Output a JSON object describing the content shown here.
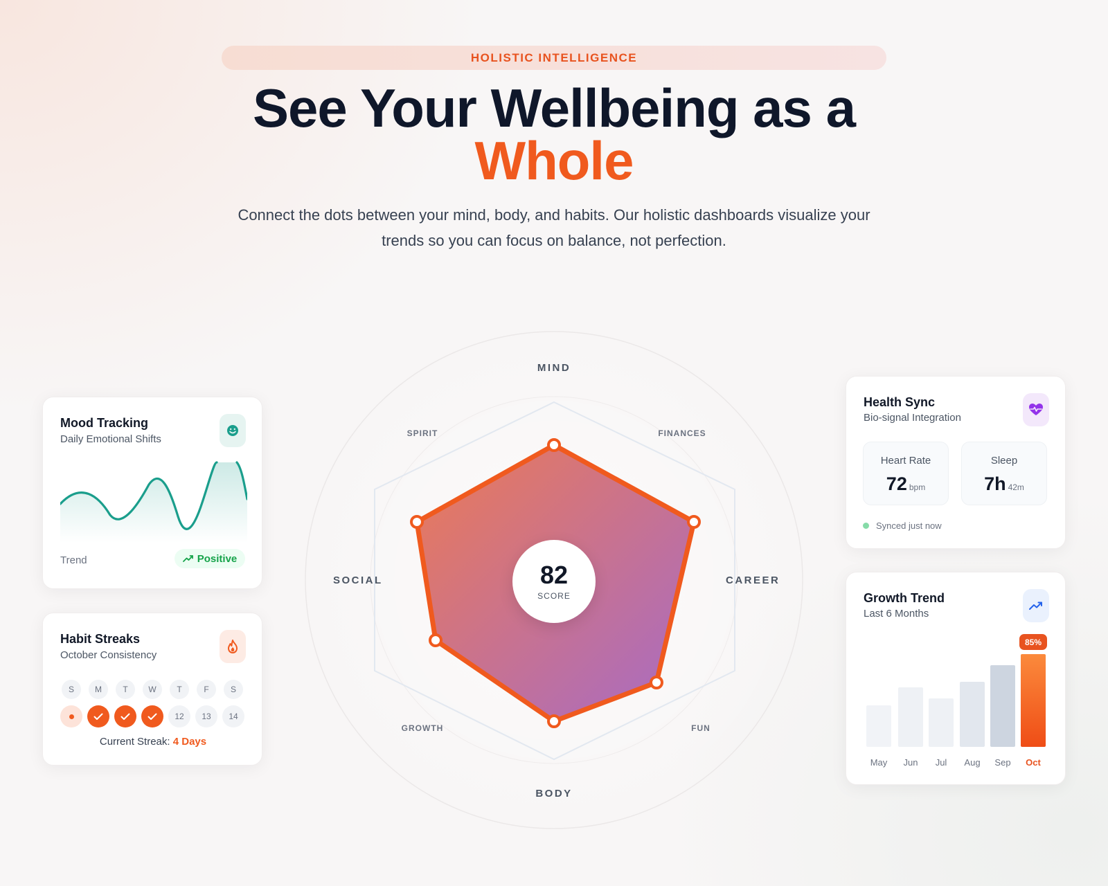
{
  "header": {
    "eyebrow": "HOLISTIC INTELLIGENCE",
    "title_line1": "See Your Wellbeing as a",
    "title_line2": "Whole",
    "description": "Connect the dots between your mind, body, and habits. Our holistic dashboards visualize your trends so you can focus on balance, not perfection."
  },
  "mood": {
    "title": "Mood Tracking",
    "subtitle": "Daily Emotional Shifts",
    "icon": "smile-icon",
    "trend_label": "Trend",
    "trend_value": "Positive",
    "accent": "#1a9e8c"
  },
  "habit": {
    "title": "Habit Streaks",
    "subtitle": "October Consistency",
    "icon": "flame-icon",
    "weekdays": [
      "S",
      "M",
      "T",
      "W",
      "T",
      "F",
      "S"
    ],
    "days": [
      {
        "label": "",
        "state": "today"
      },
      {
        "label": "",
        "state": "done"
      },
      {
        "label": "",
        "state": "done"
      },
      {
        "label": "",
        "state": "done"
      },
      {
        "label": "12",
        "state": "future"
      },
      {
        "label": "13",
        "state": "future"
      },
      {
        "label": "14",
        "state": "future"
      }
    ],
    "streak_label": "Current Streak:",
    "streak_value": "4 Days"
  },
  "radar": {
    "score": "82",
    "score_label": "SCORE",
    "axes": {
      "mind": "MIND",
      "finances": "FINANCES",
      "career": "CAREER",
      "fun": "FUN",
      "body": "BODY",
      "growth": "GROWTH",
      "social": "SOCIAL",
      "spirit": "SPIRIT"
    },
    "accent": "#f05a1e"
  },
  "health": {
    "title": "Health Sync",
    "subtitle": "Bio-signal Integration",
    "icon": "heart-pulse-icon",
    "heart_rate_label": "Heart Rate",
    "heart_rate_value": "72",
    "heart_rate_unit": "bpm",
    "sleep_label": "Sleep",
    "sleep_value": "7h",
    "sleep_unit": "42m",
    "sync_status": "Synced just now"
  },
  "growth": {
    "title": "Growth Trend",
    "subtitle": "Last 6 Months",
    "icon": "trend-up-icon",
    "highlight_label": "85%",
    "chart_data": {
      "type": "bar",
      "categories": [
        "May",
        "Jun",
        "Jul",
        "Aug",
        "Sep",
        "Oct"
      ],
      "values": [
        45,
        64,
        52,
        70,
        88,
        100
      ],
      "highlight_index": 5
    }
  }
}
